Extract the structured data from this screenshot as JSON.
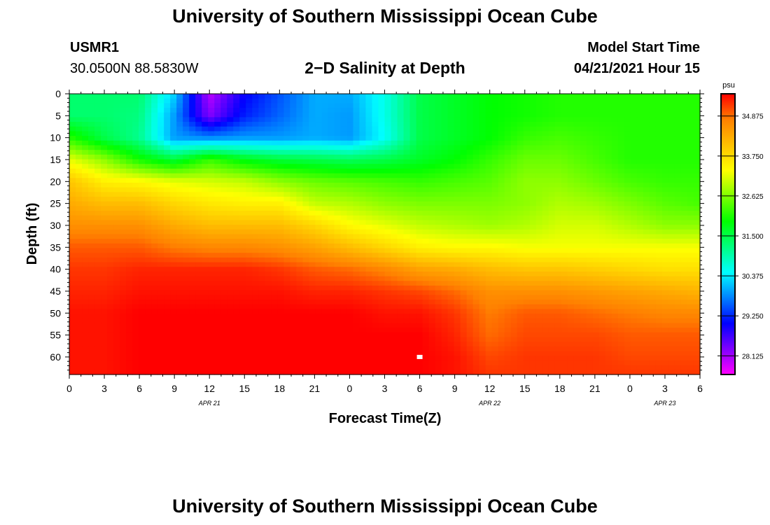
{
  "header": {
    "title": "University of Southern Mississippi Ocean Cube",
    "footer_title": "University of Southern Mississippi Ocean Cube",
    "station_id": "USMR1",
    "coordinates": "30.0500N  88.5830W",
    "chart_title": "2−D Salinity at Depth",
    "model_start_label": "Model Start Time",
    "model_start_value": "04/21/2021 Hour 15"
  },
  "chart_data": {
    "type": "heatmap",
    "title": "2−D Salinity at Depth",
    "xlabel": "Forecast Time(Z)",
    "ylabel": "Depth (ft)",
    "x_range_hours": [
      0,
      54
    ],
    "x_tick_labels": [
      "0",
      "3",
      "6",
      "9",
      "12",
      "15",
      "18",
      "21",
      "0",
      "3",
      "6",
      "9",
      "12",
      "15",
      "18",
      "21",
      "0",
      "3",
      "6"
    ],
    "x_tick_hours": [
      0,
      3,
      6,
      9,
      12,
      15,
      18,
      21,
      24,
      27,
      30,
      33,
      36,
      39,
      42,
      45,
      48,
      51,
      54
    ],
    "date_labels": [
      {
        "label": "APR 21",
        "hour": 12
      },
      {
        "label": "APR 22",
        "hour": 36
      },
      {
        "label": "APR 23",
        "hour": 51
      }
    ],
    "y_range_ft": [
      0,
      64
    ],
    "y_ticks": [
      0,
      5,
      10,
      15,
      20,
      25,
      30,
      35,
      40,
      45,
      50,
      55,
      60
    ],
    "colorbar": {
      "unit": "psu",
      "min": 27.6,
      "max": 35.5,
      "labels": [
        "34.875",
        "33.750",
        "32.625",
        "31.500",
        "30.375",
        "29.250",
        "28.125"
      ]
    },
    "depth_samples_ft": [
      0,
      5,
      10,
      15,
      20,
      25,
      30,
      35,
      40,
      45,
      50,
      55,
      60,
      64
    ],
    "time_samples_hours": [
      0,
      3,
      6,
      9,
      12,
      15,
      18,
      21,
      24,
      27,
      30,
      33,
      36,
      39,
      42,
      45,
      48,
      51,
      54
    ],
    "salinity_psu": [
      [
        31.3,
        31.3,
        31.3,
        30.2,
        28.0,
        29.0,
        29.5,
        30.0,
        30.0,
        30.6,
        31.5,
        31.7,
        31.9,
        32.0,
        32.1,
        32.1,
        32.1,
        32.1,
        32.1
      ],
      [
        31.3,
        31.3,
        31.2,
        29.9,
        28.3,
        29.2,
        29.6,
        30.0,
        29.9,
        30.6,
        31.5,
        31.7,
        31.9,
        32.0,
        32.1,
        32.1,
        32.1,
        32.1,
        32.1
      ],
      [
        32.1,
        31.5,
        31.1,
        29.9,
        29.8,
        29.9,
        29.9,
        30.0,
        29.9,
        30.5,
        31.5,
        31.7,
        31.9,
        32.2,
        32.3,
        32.2,
        32.1,
        32.1,
        32.1
      ],
      [
        33.2,
        32.7,
        32.0,
        31.6,
        32.2,
        31.8,
        31.6,
        31.5,
        31.4,
        31.5,
        31.7,
        31.9,
        32.2,
        32.5,
        32.5,
        32.3,
        32.1,
        32.1,
        32.1
      ],
      [
        34.0,
        33.5,
        33.4,
        33.2,
        33.1,
        33.0,
        32.7,
        32.5,
        32.4,
        32.3,
        32.2,
        32.3,
        32.4,
        32.7,
        32.7,
        32.5,
        32.3,
        32.2,
        32.2
      ],
      [
        34.3,
        34.1,
        34.1,
        33.8,
        33.6,
        33.5,
        33.5,
        33.0,
        32.9,
        32.7,
        32.6,
        32.6,
        32.6,
        32.7,
        32.9,
        32.8,
        32.6,
        32.4,
        32.3
      ],
      [
        34.6,
        34.6,
        34.6,
        34.3,
        34.1,
        34.1,
        34.1,
        33.8,
        33.4,
        33.2,
        33.0,
        32.9,
        32.8,
        32.9,
        33.1,
        33.1,
        32.9,
        32.7,
        32.7
      ],
      [
        35.0,
        35.0,
        35.0,
        34.8,
        34.7,
        34.7,
        34.6,
        34.4,
        34.1,
        33.8,
        33.5,
        33.4,
        33.4,
        33.3,
        33.3,
        33.3,
        33.3,
        33.3,
        33.3
      ],
      [
        35.2,
        35.2,
        35.3,
        35.3,
        35.3,
        35.3,
        35.2,
        35.0,
        34.9,
        34.7,
        34.4,
        34.3,
        34.1,
        34.0,
        34.0,
        33.9,
        33.8,
        33.7,
        33.7
      ],
      [
        35.3,
        35.3,
        35.4,
        35.4,
        35.4,
        35.4,
        35.4,
        35.3,
        35.3,
        35.2,
        35.1,
        34.9,
        34.6,
        34.6,
        34.6,
        34.5,
        34.4,
        34.3,
        34.2
      ],
      [
        35.4,
        35.4,
        35.5,
        35.5,
        35.5,
        35.5,
        35.5,
        35.5,
        35.5,
        35.4,
        35.4,
        35.2,
        34.8,
        35.0,
        35.0,
        34.9,
        34.8,
        34.7,
        34.7
      ],
      [
        35.4,
        35.4,
        35.5,
        35.5,
        35.5,
        35.5,
        35.5,
        35.5,
        35.5,
        35.5,
        35.5,
        35.3,
        34.9,
        35.1,
        35.1,
        35.1,
        35.0,
        35.0,
        35.0
      ],
      [
        35.4,
        35.4,
        35.5,
        35.5,
        35.5,
        35.5,
        35.5,
        35.5,
        35.5,
        35.5,
        35.5,
        35.4,
        35.1,
        35.2,
        35.2,
        35.2,
        35.1,
        35.1,
        35.1
      ],
      [
        35.4,
        35.4,
        35.5,
        35.5,
        35.5,
        35.5,
        35.5,
        35.5,
        35.5,
        35.5,
        35.5,
        35.4,
        35.2,
        35.2,
        35.2,
        35.2,
        35.2,
        35.2,
        35.2
      ]
    ],
    "marker": {
      "hour": 30,
      "depth_ft": 60
    }
  },
  "colors": {
    "axis": "#000000",
    "marker": "#ffffff",
    "colormap": [
      "#ff00ff",
      "#8000ff",
      "#0000ff",
      "#0080ff",
      "#00ffff",
      "#00ff80",
      "#00ff00",
      "#80ff00",
      "#ffff00",
      "#ffc000",
      "#ff8000",
      "#ff0000"
    ]
  }
}
